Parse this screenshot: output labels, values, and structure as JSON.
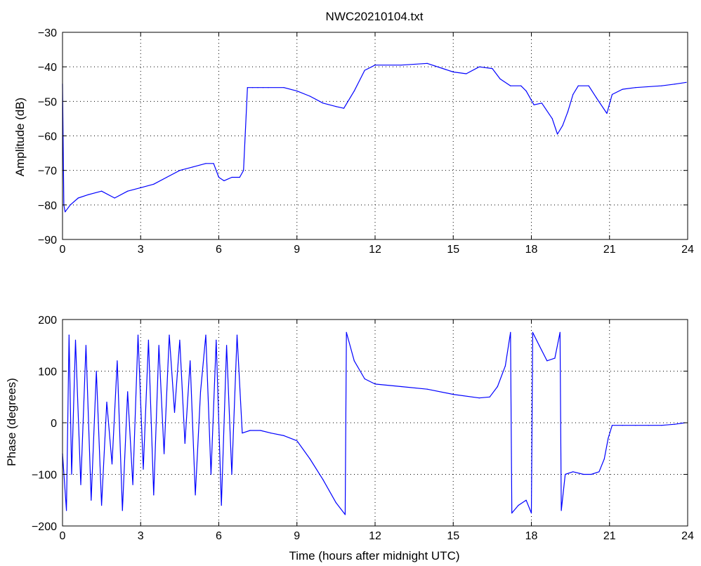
{
  "chart_data": [
    {
      "type": "line",
      "title": "NWC20210104.txt",
      "xlabel": "",
      "ylabel": "Amplitude (dB)",
      "xlim": [
        0,
        24
      ],
      "ylim": [
        -90,
        -30
      ],
      "xticks": [
        0,
        3,
        6,
        9,
        12,
        15,
        18,
        21,
        24
      ],
      "yticks": [
        -90,
        -80,
        -70,
        -60,
        -50,
        -40,
        -30
      ],
      "grid": true,
      "line_color": "#0000ff",
      "series": [
        {
          "x": [
            0.0,
            0.05,
            0.1,
            0.3,
            0.6,
            1.0,
            1.5,
            2.0,
            2.5,
            3.0,
            3.5,
            4.0,
            4.5,
            5.0,
            5.5,
            5.8,
            6.0,
            6.2,
            6.5,
            6.8,
            6.95,
            7.1,
            7.3,
            7.5,
            7.7,
            7.9,
            8.5,
            9.0,
            9.5,
            10.0,
            10.5,
            10.8,
            11.2,
            11.6,
            12.0,
            13.0,
            14.0,
            15.0,
            15.5,
            16.0,
            16.5,
            16.8,
            17.2,
            17.6,
            17.8,
            18.1,
            18.4,
            18.8,
            19.0,
            19.2,
            19.4,
            19.6,
            19.8,
            20.2,
            20.5,
            20.9,
            21.1,
            21.5,
            22.0,
            23.0,
            23.5,
            23.95
          ],
          "y": [
            -45,
            -80,
            -82,
            -80,
            -78,
            -77,
            -76,
            -78,
            -76,
            -75,
            -74,
            -72,
            -70,
            -69,
            -68,
            -68,
            -72,
            -73,
            -72,
            -72,
            -70,
            -46,
            -46,
            -46,
            -46,
            -46,
            -46,
            -47,
            -48.5,
            -50.5,
            -51.5,
            -52,
            -47,
            -41,
            -39.5,
            -39.5,
            -39,
            -41.5,
            -42,
            -40,
            -40.5,
            -43.5,
            -45.5,
            -45.5,
            -47,
            -51,
            -50.5,
            -55,
            -59.5,
            -57,
            -53,
            -48,
            -45.5,
            -45.5,
            -49,
            -53.5,
            -48,
            -46.5,
            -46,
            -45.5,
            -45,
            -44.5
          ]
        }
      ]
    },
    {
      "type": "line",
      "title": "",
      "xlabel": "Time (hours after midnight UTC)",
      "ylabel": "Phase (degrees)",
      "xlim": [
        0,
        24
      ],
      "ylim": [
        -200,
        200
      ],
      "xticks": [
        0,
        3,
        6,
        9,
        12,
        15,
        18,
        21,
        24
      ],
      "yticks": [
        -200,
        -100,
        0,
        100,
        200
      ],
      "grid": true,
      "line_color": "#0000ff",
      "series": [
        {
          "x": [
            0.0,
            0.15,
            0.25,
            0.35,
            0.5,
            0.7,
            0.9,
            1.1,
            1.3,
            1.5,
            1.7,
            1.9,
            2.1,
            2.3,
            2.5,
            2.7,
            2.9,
            3.1,
            3.3,
            3.5,
            3.7,
            3.9,
            4.1,
            4.3,
            4.5,
            4.7,
            4.9,
            5.1,
            5.3,
            5.5,
            5.7,
            5.9,
            6.1,
            6.3,
            6.5,
            6.7,
            6.9,
            7.2,
            7.6,
            8.0,
            8.5,
            9.0,
            9.5,
            10.0,
            10.5,
            10.85,
            10.9,
            11.2,
            11.6,
            12.0,
            13.0,
            14.0,
            15.0,
            16.0,
            16.4,
            16.7,
            17.0,
            17.2,
            17.25,
            17.5,
            17.8,
            18.0,
            18.05,
            18.3,
            18.6,
            18.9,
            19.1,
            19.15,
            19.3,
            19.6,
            20.0,
            20.3,
            20.6,
            20.8,
            20.95,
            21.1,
            21.5,
            22.0,
            22.5,
            23.0,
            23.5,
            23.9
          ],
          "y": [
            -60,
            -170,
            170,
            -100,
            160,
            -120,
            150,
            -150,
            100,
            -160,
            40,
            -80,
            120,
            -170,
            60,
            -120,
            170,
            -90,
            160,
            -140,
            150,
            -60,
            170,
            20,
            160,
            -40,
            120,
            -140,
            60,
            170,
            -100,
            160,
            -160,
            150,
            -100,
            170,
            -20,
            -15,
            -15,
            -20,
            -25,
            -35,
            -70,
            -110,
            -155,
            -178,
            175,
            120,
            85,
            75,
            70,
            65,
            55,
            48,
            50,
            70,
            110,
            175,
            -175,
            -160,
            -150,
            -175,
            175,
            150,
            120,
            125,
            175,
            -170,
            -100,
            -95,
            -100,
            -100,
            -95,
            -70,
            -30,
            -5,
            -5,
            -5,
            -5,
            -5,
            -3,
            0
          ]
        }
      ]
    }
  ]
}
